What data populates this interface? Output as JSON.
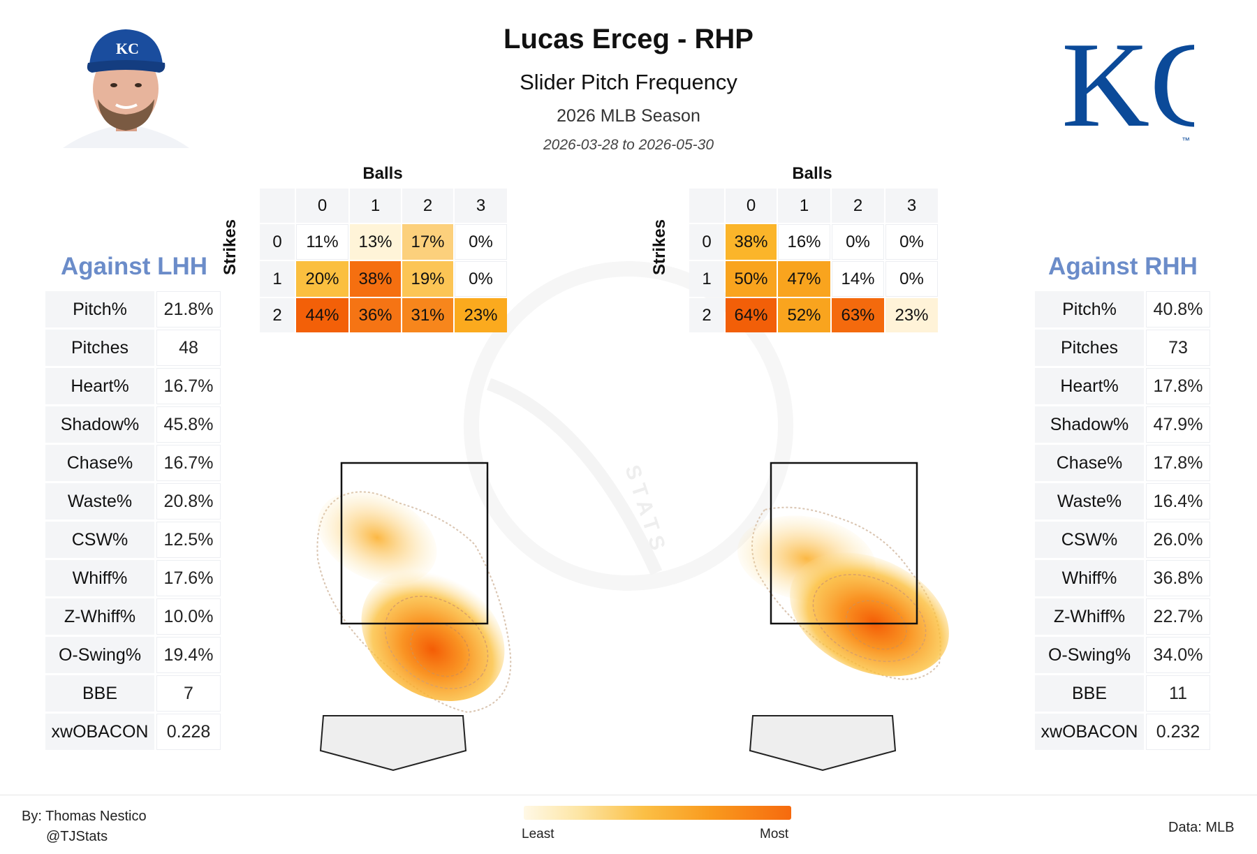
{
  "header": {
    "title": "Lucas Erceg - RHP",
    "subtitle": "Slider Pitch Frequency",
    "season": "2026 MLB Season",
    "dates": "2026-03-28 to 2026-05-30"
  },
  "logo": {
    "team": "KC",
    "trademark": "™",
    "color": "#0b4a99"
  },
  "left_panel": {
    "title": "Against LHH",
    "stats": [
      {
        "label": "Pitch%",
        "value": "21.8%"
      },
      {
        "label": "Pitches",
        "value": "48"
      },
      {
        "label": "Heart%",
        "value": "16.7%"
      },
      {
        "label": "Shadow%",
        "value": "45.8%"
      },
      {
        "label": "Chase%",
        "value": "16.7%"
      },
      {
        "label": "Waste%",
        "value": "20.8%"
      },
      {
        "label": "CSW%",
        "value": "12.5%"
      },
      {
        "label": "Whiff%",
        "value": "17.6%"
      },
      {
        "label": "Z-Whiff%",
        "value": "10.0%"
      },
      {
        "label": "O-Swing%",
        "value": "19.4%"
      },
      {
        "label": "BBE",
        "value": "7"
      },
      {
        "label": "xwOBACON",
        "value": "0.228"
      }
    ]
  },
  "right_panel": {
    "title": "Against RHH",
    "stats": [
      {
        "label": "Pitch%",
        "value": "40.8%"
      },
      {
        "label": "Pitches",
        "value": "73"
      },
      {
        "label": "Heart%",
        "value": "17.8%"
      },
      {
        "label": "Shadow%",
        "value": "47.9%"
      },
      {
        "label": "Chase%",
        "value": "17.8%"
      },
      {
        "label": "Waste%",
        "value": "16.4%"
      },
      {
        "label": "CSW%",
        "value": "26.0%"
      },
      {
        "label": "Whiff%",
        "value": "36.8%"
      },
      {
        "label": "Z-Whiff%",
        "value": "22.7%"
      },
      {
        "label": "O-Swing%",
        "value": "34.0%"
      },
      {
        "label": "BBE",
        "value": "11"
      },
      {
        "label": "xwOBACON",
        "value": "0.232"
      }
    ]
  },
  "chart_data": [
    {
      "type": "heatmap",
      "title": "Against LHH",
      "xlabel": "Balls",
      "ylabel": "Strikes",
      "x": [
        "0",
        "1",
        "2",
        "3"
      ],
      "y": [
        "0",
        "1",
        "2"
      ],
      "labels": [
        [
          "11%",
          "13%",
          "17%",
          "0%"
        ],
        [
          "20%",
          "38%",
          "19%",
          "0%"
        ],
        [
          "44%",
          "36%",
          "31%",
          "23%"
        ]
      ],
      "values": [
        [
          11,
          13,
          17,
          0
        ],
        [
          20,
          38,
          19,
          0
        ],
        [
          44,
          36,
          31,
          23
        ]
      ],
      "colors": [
        [
          "#ffffff",
          "#fff4d8",
          "#fcd07c",
          "#ffffff"
        ],
        [
          "#fbbf3f",
          "#f56f10",
          "#fcc555",
          "#ffffff"
        ],
        [
          "#f36008",
          "#f57414",
          "#f7861c",
          "#fbaa1e"
        ]
      ]
    },
    {
      "type": "heatmap",
      "title": "Against RHH",
      "xlabel": "Balls",
      "ylabel": "Strikes",
      "x": [
        "0",
        "1",
        "2",
        "3"
      ],
      "y": [
        "0",
        "1",
        "2"
      ],
      "labels": [
        [
          "38%",
          "16%",
          "0%",
          "0%"
        ],
        [
          "50%",
          "47%",
          "14%",
          "0%"
        ],
        [
          "64%",
          "52%",
          "63%",
          "23%"
        ]
      ],
      "values": [
        [
          38,
          16,
          0,
          0
        ],
        [
          50,
          47,
          14,
          0
        ],
        [
          64,
          52,
          63,
          23
        ]
      ],
      "colors": [
        [
          "#fbb52a",
          "#ffffff",
          "#ffffff",
          "#ffffff"
        ],
        [
          "#f9a41e",
          "#f9a41e",
          "#ffffff",
          "#ffffff"
        ],
        [
          "#f25f08",
          "#f9a41e",
          "#f46a0d",
          "#fff3d8"
        ]
      ]
    }
  ],
  "colorbar": {
    "min_label": "Least",
    "max_label": "Most"
  },
  "footer": {
    "author": "By: Thomas Nestico",
    "handle": "@TJStats",
    "source": "Data: MLB"
  },
  "watermark": "STATS"
}
